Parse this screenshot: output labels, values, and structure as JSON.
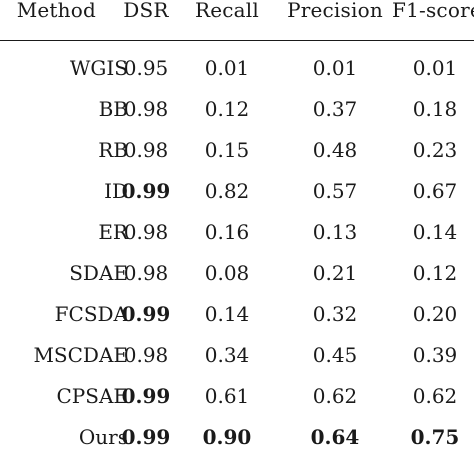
{
  "headers": {
    "method": "Method",
    "dsr": "DSR",
    "recall": "Recall",
    "precision": "Precision",
    "f1": "F1-score"
  },
  "rows": [
    {
      "method": "WGIS",
      "dsr": "0.95",
      "recall": "0.01",
      "precision": "0.01",
      "f1": "0.01",
      "bold": []
    },
    {
      "method": "BB",
      "dsr": "0.98",
      "recall": "0.12",
      "precision": "0.37",
      "f1": "0.18",
      "bold": []
    },
    {
      "method": "RB",
      "dsr": "0.98",
      "recall": "0.15",
      "precision": "0.48",
      "f1": "0.23",
      "bold": []
    },
    {
      "method": "ID",
      "dsr": "0.99",
      "recall": "0.82",
      "precision": "0.57",
      "f1": "0.67",
      "bold": [
        "dsr"
      ]
    },
    {
      "method": "ER",
      "dsr": "0.98",
      "recall": "0.16",
      "precision": "0.13",
      "f1": "0.14",
      "bold": []
    },
    {
      "method": "SDAE",
      "dsr": "0.98",
      "recall": "0.08",
      "precision": "0.21",
      "f1": "0.12",
      "bold": []
    },
    {
      "method": "FCSDA",
      "dsr": "0.99",
      "recall": "0.14",
      "precision": "0.32",
      "f1": "0.20",
      "bold": [
        "dsr"
      ]
    },
    {
      "method": "MSCDAE",
      "dsr": "0.98",
      "recall": "0.34",
      "precision": "0.45",
      "f1": "0.39",
      "bold": []
    },
    {
      "method": "CPSAE",
      "dsr": "0.99",
      "recall": "0.61",
      "precision": "0.62",
      "f1": "0.62",
      "bold": [
        "dsr"
      ]
    },
    {
      "method": "Ours",
      "dsr": "0.99",
      "recall": "0.90",
      "precision": "0.64",
      "f1": "0.75",
      "bold": [
        "dsr",
        "recall",
        "precision",
        "f1"
      ]
    }
  ]
}
